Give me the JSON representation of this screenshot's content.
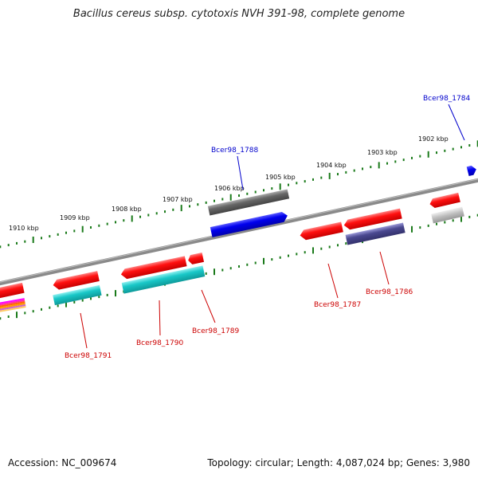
{
  "title": "Bacillus cereus subsp. cytotoxis NVH 391-98, complete genome",
  "footer": {
    "accession": "Accession: NC_009674",
    "topology": "Topology: circular; Length: 4,087,024 bp; Genes: 3,980"
  },
  "ruler_labels": [
    "1910 kbp",
    "1909 kbp",
    "1908 kbp",
    "1907 kbp",
    "1906 kbp",
    "1905 kbp",
    "1904 kbp",
    "1903 kbp",
    "1902 kbp"
  ],
  "gene_labels": {
    "red": [
      "Bcer98_1791",
      "Bcer98_1790",
      "Bcer98_1789",
      "Bcer98_1787",
      "Bcer98_1786"
    ],
    "blue": [
      "Bcer98_1788",
      "Bcer98_1784"
    ]
  },
  "colors": {
    "forward_highlight": "#0000ee",
    "reverse_highlight": "#ee0000",
    "backbone": "#888888",
    "tick": "#1a7a1a",
    "cyan": "#19c8c8",
    "slate": "#4a4890",
    "gray": "#666666"
  }
}
